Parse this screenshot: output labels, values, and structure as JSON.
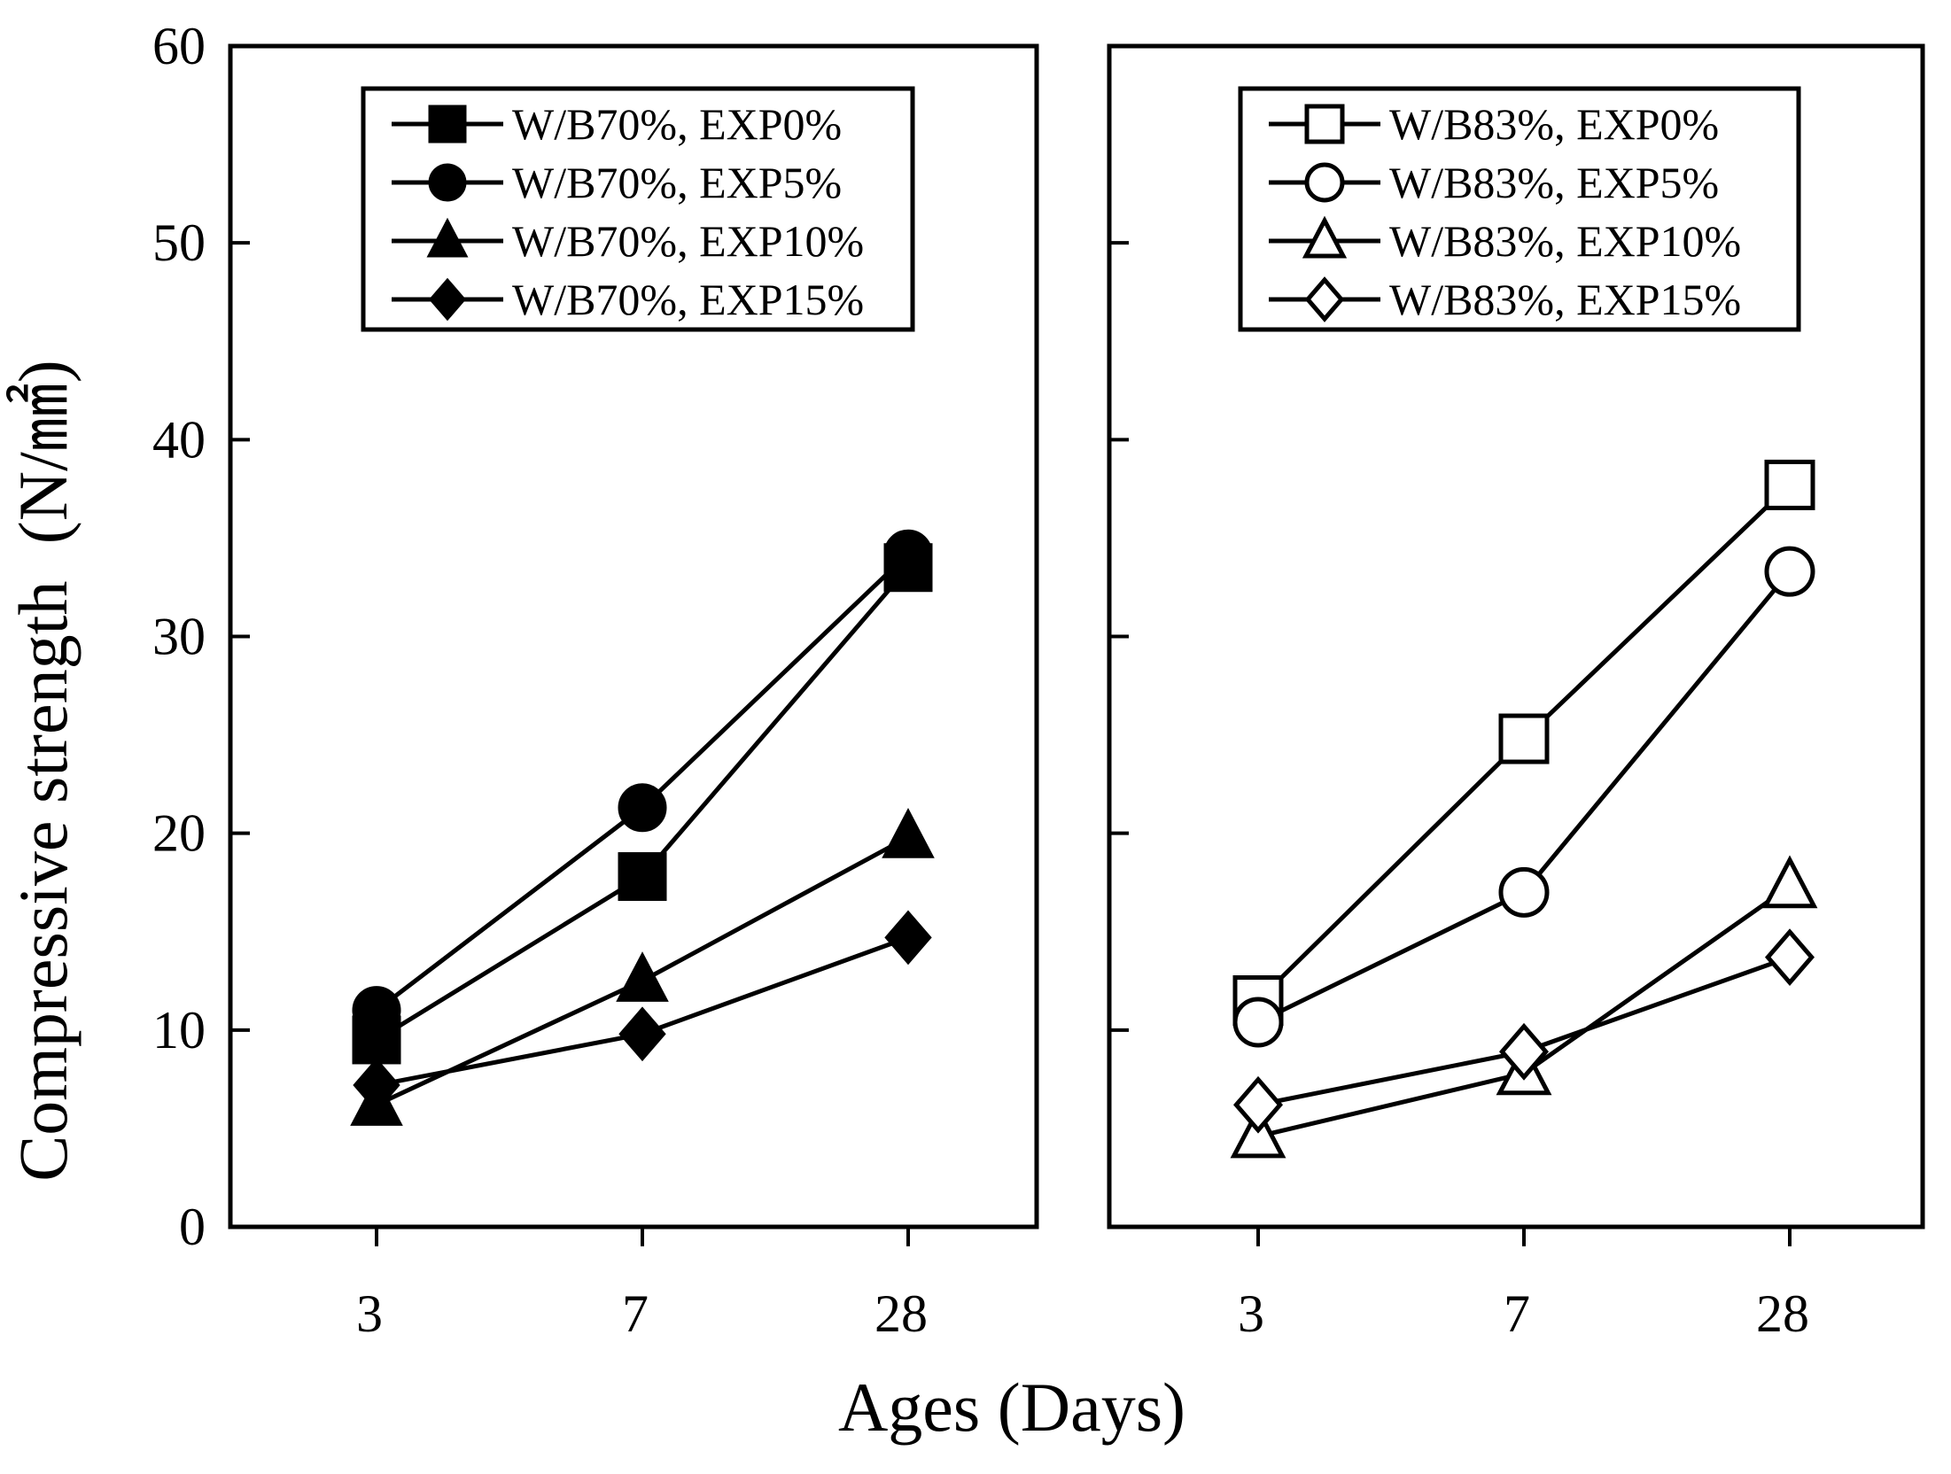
{
  "chart_data": [
    {
      "type": "line",
      "panel": "left",
      "categories": [
        "3",
        "7",
        "28"
      ],
      "ylim": [
        0,
        60
      ],
      "yticks": [
        "0",
        "10",
        "20",
        "30",
        "40",
        "50",
        "60"
      ],
      "ylabel": "Compressive strength (N/㎟)",
      "legend_position": "top",
      "series": [
        {
          "name": "W/B70%, EXP0%",
          "marker": "square",
          "filled": true,
          "values": [
            9.5,
            17.8,
            33.5
          ]
        },
        {
          "name": "W/B70%, EXP5%",
          "marker": "circle",
          "filled": true,
          "values": [
            11.0,
            21.3,
            34.2
          ]
        },
        {
          "name": "W/B70%, EXP10%",
          "marker": "triangle",
          "filled": true,
          "values": [
            6.2,
            12.5,
            19.8
          ]
        },
        {
          "name": "W/B70%, EXP15%",
          "marker": "diamond",
          "filled": true,
          "values": [
            7.2,
            9.8,
            14.7
          ]
        }
      ]
    },
    {
      "type": "line",
      "panel": "right",
      "categories": [
        "3",
        "7",
        "28"
      ],
      "ylim": [
        0,
        60
      ],
      "legend_position": "top",
      "series": [
        {
          "name": "W/B83%, EXP0%",
          "marker": "square",
          "filled": false,
          "values": [
            11.5,
            24.8,
            37.7
          ]
        },
        {
          "name": "W/B83%, EXP5%",
          "marker": "circle",
          "filled": false,
          "values": [
            10.4,
            17.0,
            33.3
          ]
        },
        {
          "name": "W/B83%, EXP10%",
          "marker": "triangle",
          "filled": false,
          "values": [
            4.6,
            7.8,
            17.3
          ]
        },
        {
          "name": "W/B83%, EXP15%",
          "marker": "diamond",
          "filled": false,
          "values": [
            6.2,
            8.9,
            13.7
          ]
        }
      ]
    }
  ],
  "xlabel": "Ages (Days)",
  "ylabel_main": "Compressive strength",
  "ylabel_unit": "(N/㎟)"
}
